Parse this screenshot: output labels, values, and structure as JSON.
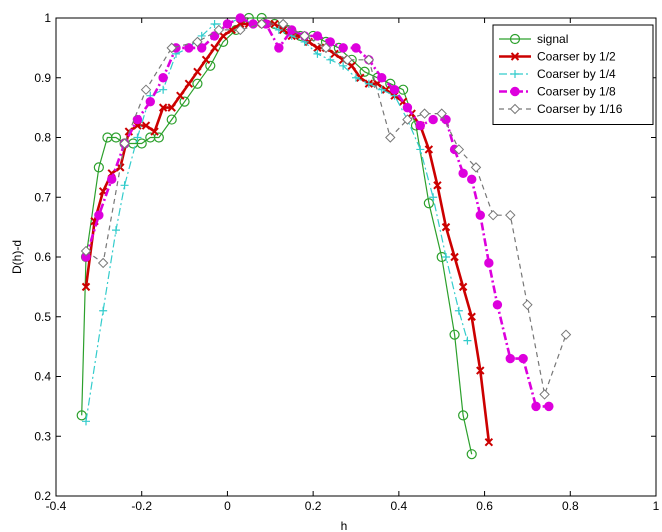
{
  "chart_data": {
    "type": "line",
    "xlabel": "h",
    "ylabel": "D(h)-d",
    "xlim": [
      -0.4,
      1.0
    ],
    "ylim": [
      0.2,
      1.0
    ],
    "xticks": [
      -0.4,
      -0.2,
      0,
      0.2,
      0.4,
      0.6,
      0.8,
      1.0
    ],
    "xtick_labels": [
      "-0.4",
      "-0.2",
      "0",
      "0.2",
      "0.4",
      "0.6",
      "0.8",
      "1"
    ],
    "yticks": [
      0.2,
      0.3,
      0.4,
      0.5,
      0.6,
      0.7,
      0.8,
      0.9,
      1.0
    ],
    "ytick_labels": [
      "0.2",
      "0.3",
      "0.4",
      "0.5",
      "0.6",
      "0.7",
      "0.8",
      "0.9",
      "1"
    ],
    "grid": false,
    "legend_position": "top-right",
    "series": [
      {
        "name": "signal",
        "color": "#2ca02c",
        "line_style": "solid",
        "marker": "circle",
        "x": [
          -0.34,
          -0.33,
          -0.3,
          -0.28,
          -0.26,
          -0.24,
          -0.22,
          -0.2,
          -0.18,
          -0.16,
          -0.13,
          -0.1,
          -0.07,
          -0.04,
          -0.01,
          0.02,
          0.05,
          0.08,
          0.11,
          0.14,
          0.17,
          0.2,
          0.23,
          0.26,
          0.29,
          0.32,
          0.35,
          0.38,
          0.41,
          0.44,
          0.47,
          0.5,
          0.53,
          0.55,
          0.57
        ],
        "y": [
          0.335,
          0.6,
          0.75,
          0.8,
          0.8,
          0.79,
          0.79,
          0.79,
          0.8,
          0.8,
          0.83,
          0.86,
          0.89,
          0.92,
          0.96,
          0.98,
          1.0,
          1.0,
          0.99,
          0.98,
          0.97,
          0.97,
          0.96,
          0.95,
          0.93,
          0.91,
          0.9,
          0.89,
          0.88,
          0.82,
          0.69,
          0.6,
          0.47,
          0.335,
          0.27
        ]
      },
      {
        "name": "Coarser by 1/2",
        "color": "#cc0000",
        "line_style": "solid",
        "marker": "x",
        "x": [
          -0.33,
          -0.31,
          -0.29,
          -0.27,
          -0.25,
          -0.23,
          -0.21,
          -0.19,
          -0.17,
          -0.15,
          -0.13,
          -0.11,
          -0.09,
          -0.07,
          -0.05,
          -0.03,
          -0.01,
          0.01,
          0.03,
          0.05,
          0.07,
          0.09,
          0.11,
          0.13,
          0.15,
          0.17,
          0.19,
          0.21,
          0.23,
          0.25,
          0.27,
          0.29,
          0.31,
          0.33,
          0.35,
          0.37,
          0.39,
          0.41,
          0.43,
          0.45,
          0.47,
          0.49,
          0.51,
          0.53,
          0.55,
          0.57,
          0.59,
          0.61
        ],
        "y": [
          0.55,
          0.66,
          0.71,
          0.74,
          0.75,
          0.81,
          0.82,
          0.82,
          0.81,
          0.85,
          0.85,
          0.87,
          0.89,
          0.91,
          0.93,
          0.95,
          0.97,
          0.98,
          0.99,
          0.99,
          0.99,
          0.99,
          0.99,
          0.98,
          0.97,
          0.97,
          0.96,
          0.95,
          0.95,
          0.94,
          0.93,
          0.92,
          0.9,
          0.89,
          0.89,
          0.88,
          0.87,
          0.86,
          0.84,
          0.82,
          0.78,
          0.72,
          0.65,
          0.6,
          0.55,
          0.5,
          0.41,
          0.29
        ]
      },
      {
        "name": "Coarser by 1/4",
        "color": "#33cccc",
        "line_style": "dashdot",
        "marker": "plus",
        "x": [
          -0.33,
          -0.29,
          -0.26,
          -0.24,
          -0.21,
          -0.18,
          -0.15,
          -0.12,
          -0.09,
          -0.06,
          -0.03,
          0.0,
          0.03,
          0.06,
          0.09,
          0.12,
          0.15,
          0.18,
          0.21,
          0.24,
          0.27,
          0.3,
          0.33,
          0.36,
          0.39,
          0.42,
          0.45,
          0.48,
          0.51,
          0.54,
          0.56
        ],
        "y": [
          0.325,
          0.51,
          0.645,
          0.72,
          0.8,
          0.87,
          0.88,
          0.94,
          0.95,
          0.97,
          0.99,
          0.99,
          1.0,
          0.99,
          0.99,
          0.98,
          0.97,
          0.96,
          0.94,
          0.93,
          0.92,
          0.9,
          0.89,
          0.88,
          0.87,
          0.83,
          0.78,
          0.7,
          0.6,
          0.51,
          0.46
        ]
      },
      {
        "name": "Coarser by 1/8",
        "color": "#dd00dd",
        "line_style": "dashdot",
        "marker": "filled-circle",
        "x": [
          -0.33,
          -0.3,
          -0.27,
          -0.24,
          -0.21,
          -0.18,
          -0.15,
          -0.12,
          -0.09,
          -0.06,
          -0.03,
          0.0,
          0.03,
          0.06,
          0.09,
          0.12,
          0.15,
          0.18,
          0.21,
          0.24,
          0.27,
          0.3,
          0.33,
          0.36,
          0.39,
          0.42,
          0.45,
          0.48,
          0.51,
          0.53,
          0.55,
          0.57,
          0.59,
          0.61,
          0.63,
          0.66,
          0.69,
          0.72,
          0.75
        ],
        "y": [
          0.6,
          0.67,
          0.73,
          0.79,
          0.83,
          0.86,
          0.9,
          0.95,
          0.95,
          0.95,
          0.97,
          0.99,
          1.0,
          0.99,
          0.99,
          0.95,
          0.98,
          0.97,
          0.97,
          0.96,
          0.95,
          0.95,
          0.93,
          0.9,
          0.88,
          0.85,
          0.82,
          0.83,
          0.83,
          0.78,
          0.74,
          0.73,
          0.67,
          0.59,
          0.52,
          0.43,
          0.43,
          0.35,
          0.35
        ]
      },
      {
        "name": "Coarser by 1/16",
        "color": "#777777",
        "line_style": "dashed",
        "marker": "diamond",
        "x": [
          -0.33,
          -0.29,
          -0.24,
          -0.19,
          -0.13,
          -0.07,
          -0.02,
          0.03,
          0.08,
          0.13,
          0.18,
          0.23,
          0.28,
          0.33,
          0.38,
          0.42,
          0.46,
          0.5,
          0.54,
          0.58,
          0.62,
          0.66,
          0.7,
          0.74,
          0.79
        ],
        "y": [
          0.61,
          0.59,
          0.79,
          0.88,
          0.95,
          0.96,
          0.98,
          0.98,
          0.99,
          0.99,
          0.97,
          0.95,
          0.93,
          0.93,
          0.8,
          0.83,
          0.84,
          0.84,
          0.78,
          0.75,
          0.67,
          0.67,
          0.52,
          0.37,
          0.47
        ]
      }
    ]
  }
}
